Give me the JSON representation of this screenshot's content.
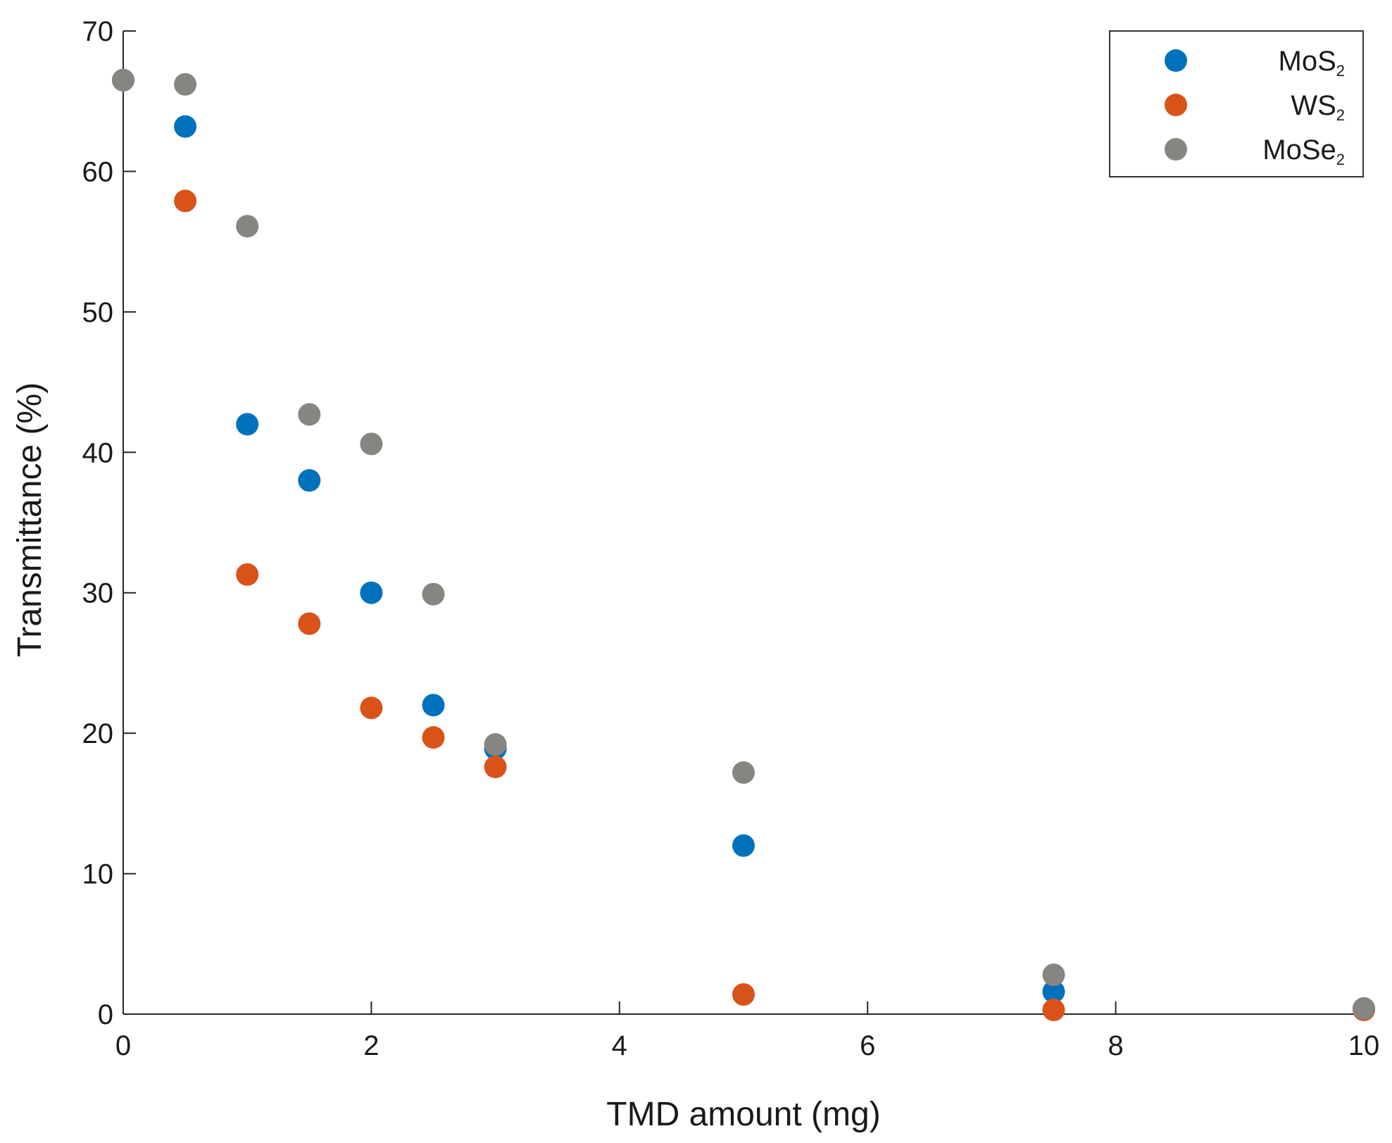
{
  "chart_data": {
    "type": "scatter",
    "title": "",
    "xlabel": "TMD amount (mg)",
    "ylabel": "Transmittance (%)",
    "xlim": [
      0,
      10
    ],
    "ylim": [
      0,
      70
    ],
    "xticks": [
      0,
      2,
      4,
      6,
      8,
      10
    ],
    "yticks": [
      0,
      10,
      20,
      30,
      40,
      50,
      60,
      70
    ],
    "grid": false,
    "legend_position": "top-right",
    "series": [
      {
        "name": "MoS2",
        "label_main": "MoS",
        "label_sub": "2",
        "color": "#0072BD",
        "points": [
          [
            0,
            66.5
          ],
          [
            0.5,
            63.2
          ],
          [
            1,
            42.0
          ],
          [
            1.5,
            38.0
          ],
          [
            2,
            30.0
          ],
          [
            2.5,
            22.0
          ],
          [
            3,
            18.9
          ],
          [
            5,
            12.0
          ],
          [
            7.5,
            1.6
          ],
          [
            10,
            0.4
          ]
        ]
      },
      {
        "name": "WS2",
        "label_main": "WS",
        "label_sub": "2",
        "color": "#D95319",
        "points": [
          [
            0,
            66.5
          ],
          [
            0.5,
            57.9
          ],
          [
            1,
            31.3
          ],
          [
            1.5,
            27.8
          ],
          [
            2,
            21.8
          ],
          [
            2.5,
            19.7
          ],
          [
            3,
            17.6
          ],
          [
            5,
            1.4
          ],
          [
            7.5,
            0.3
          ],
          [
            10,
            0.3
          ]
        ]
      },
      {
        "name": "MoSe2",
        "label_main": "MoSe",
        "label_sub": "2",
        "color": "#878581",
        "points": [
          [
            0,
            66.5
          ],
          [
            0.5,
            66.2
          ],
          [
            1,
            56.1
          ],
          [
            1.5,
            42.7
          ],
          [
            2,
            40.6
          ],
          [
            2.5,
            29.9
          ],
          [
            3,
            19.2
          ],
          [
            5,
            17.2
          ],
          [
            7.5,
            2.8
          ],
          [
            10,
            0.4
          ]
        ]
      }
    ]
  }
}
